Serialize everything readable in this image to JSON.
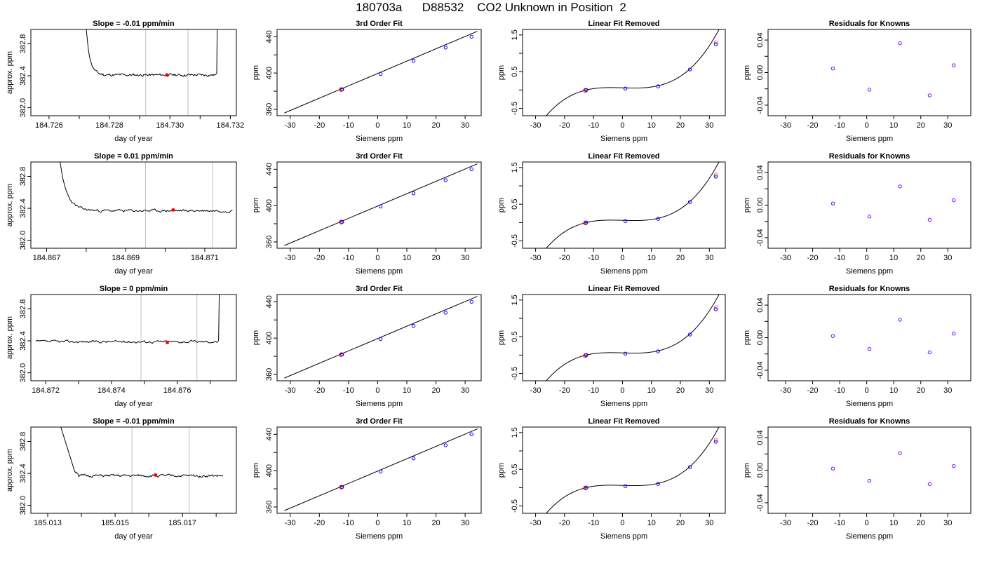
{
  "figure_title": "180703a      D88532    CO2 Unknown in Position  2",
  "chart_data": [
    {
      "type": "line",
      "row": 0,
      "col": 0,
      "title": "Slope =  -0.01  ppm/min",
      "xlabel": "day of year",
      "ylabel": "approx. ppm",
      "xlim": [
        184.7254,
        184.7322
      ],
      "ylim": [
        381.9,
        382.98
      ],
      "xticks": [
        184.726,
        184.728,
        184.73,
        184.732
      ],
      "xticklabels": [
        "184.726",
        "184.728",
        "184.730",
        "184.732"
      ],
      "xminor": [
        184.727,
        184.729,
        184.731
      ],
      "yticks": [
        382.0,
        382.4,
        382.8
      ],
      "yticklabels": [
        "382.0",
        "382.4",
        "382.8"
      ],
      "vlines": [
        184.7292,
        184.7306
      ],
      "trace": {
        "start": 184.7273,
        "end": 184.7317,
        "base": 382.41,
        "jitter": 0.012,
        "seed": 11,
        "head": {
          "x0": 184.7272,
          "y0": 383.1,
          "x1": 184.7278,
          "tau": 0.00013,
          "dip": 0.0
        },
        "tail": {
          "x0": 184.73155,
          "y": 383.1
        }
      },
      "marker": {
        "x": 184.7299,
        "y": 382.41
      }
    },
    {
      "type": "line",
      "row": 1,
      "col": 0,
      "title": "Slope =  0.01  ppm/min",
      "xlabel": "day of year",
      "ylabel": "approx. ppm",
      "xlim": [
        184.8666,
        184.8718
      ],
      "ylim": [
        381.9,
        382.98
      ],
      "xticks": [
        184.867,
        184.869,
        184.871
      ],
      "xticklabels": [
        "184.867",
        "184.869",
        "184.871"
      ],
      "xminor": [
        184.868,
        184.87
      ],
      "yticks": [
        382.0,
        382.4,
        382.8
      ],
      "yticklabels": [
        "382.0",
        "382.4",
        "382.8"
      ],
      "vlines": [
        184.8695,
        184.8712
      ],
      "trace": {
        "start": 184.8674,
        "end": 184.8717,
        "base": 382.37,
        "jitter": 0.012,
        "seed": 23,
        "head": {
          "x0": 184.8673,
          "y0": 383.1,
          "x1": 184.8683,
          "tau": 0.00018,
          "dip": 0.0
        }
      },
      "marker": {
        "x": 184.8702,
        "y": 382.38
      }
    },
    {
      "type": "line",
      "row": 2,
      "col": 0,
      "title": "Slope =  0  ppm/min",
      "xlabel": "day of year",
      "ylabel": "approx. ppm",
      "xlim": [
        184.87155,
        184.8778
      ],
      "ylim": [
        381.9,
        382.98
      ],
      "xticks": [
        184.872,
        184.874,
        184.876
      ],
      "xticklabels": [
        "184.872",
        "184.874",
        "184.876"
      ],
      "xminor": [
        184.873,
        184.875,
        184.877
      ],
      "yticks": [
        382.0,
        382.4,
        382.8
      ],
      "yticklabels": [
        "382.0",
        "382.4",
        "382.8"
      ],
      "vlines": [
        184.8749,
        184.8766
      ],
      "trace": {
        "start": 184.8717,
        "end": 184.8773,
        "base": 382.39,
        "jitter": 0.012,
        "seed": 37,
        "tail": {
          "x0": 184.87726,
          "y": 383.1
        }
      },
      "marker": {
        "x": 184.8757,
        "y": 382.38
      }
    },
    {
      "type": "line",
      "row": 3,
      "col": 0,
      "title": "Slope =  -0.01  ppm/min",
      "xlabel": "day of year",
      "ylabel": "approx. ppm",
      "xlim": [
        185.0125,
        185.0186
      ],
      "ylim": [
        381.9,
        382.98
      ],
      "xticks": [
        185.013,
        185.015,
        185.017
      ],
      "xticklabels": [
        "185.013",
        "185.015",
        "185.017"
      ],
      "xminor": [
        185.014,
        185.016,
        185.018
      ],
      "yticks": [
        382.0,
        382.4,
        382.8
      ],
      "yticklabels": [
        "382.0",
        "382.4",
        "382.8"
      ],
      "vlines": [
        185.0155,
        185.0172
      ],
      "trace": {
        "start": 185.0138,
        "end": 185.0182,
        "base": 382.37,
        "jitter": 0.012,
        "seed": 51,
        "head": {
          "x0": 185.0133,
          "y0": 383.1,
          "x1": 185.0139,
          "tau": 0.0002,
          "dip": 0.0
        }
      },
      "marker": {
        "x": 185.0162,
        "y": 382.38
      }
    },
    {
      "type": "scatter",
      "row": 0,
      "col": 1,
      "title": "3rd Order Fit",
      "xlabel": "Siemens ppm",
      "ylabel": "ppm",
      "xlim": [
        -34.5,
        35.5
      ],
      "ylim": [
        353,
        448
      ],
      "xticks": [
        -30,
        -20,
        -10,
        0,
        10,
        20,
        30
      ],
      "xticklabels": [
        "-30",
        "-20",
        "-10",
        "0",
        "10",
        "20",
        "30"
      ],
      "yticks": [
        360,
        400,
        440
      ],
      "yticklabels": [
        "360",
        "400",
        "440"
      ],
      "yminor": [
        380,
        420
      ],
      "fit_line": {
        "x": [
          -32,
          34.2
        ],
        "y": [
          356,
          446
        ]
      },
      "points_blue": [
        {
          "x": -12.2,
          "y": 382
        },
        {
          "x": 1,
          "y": 399
        },
        {
          "x": 12.3,
          "y": 413.5
        },
        {
          "x": 23.3,
          "y": 428
        },
        {
          "x": 32.2,
          "y": 440
        }
      ],
      "points_red": [
        {
          "x": -12.5,
          "y": 381.8
        }
      ]
    },
    {
      "type": "scatter",
      "row": 1,
      "col": 1,
      "title": "3rd Order Fit",
      "xlabel": "Siemens ppm",
      "ylabel": "ppm",
      "xlim": [
        -34.5,
        35.5
      ],
      "ylim": [
        353,
        448
      ],
      "xticks": [
        -30,
        -20,
        -10,
        0,
        10,
        20,
        30
      ],
      "xticklabels": [
        "-30",
        "-20",
        "-10",
        "0",
        "10",
        "20",
        "30"
      ],
      "yticks": [
        360,
        400,
        440
      ],
      "yticklabels": [
        "360",
        "400",
        "440"
      ],
      "yminor": [
        380,
        420
      ],
      "fit_line": {
        "x": [
          -32,
          34.2
        ],
        "y": [
          356,
          446
        ]
      },
      "points_blue": [
        {
          "x": -12.2,
          "y": 382
        },
        {
          "x": 1,
          "y": 399
        },
        {
          "x": 12.3,
          "y": 413.5
        },
        {
          "x": 23.3,
          "y": 428
        },
        {
          "x": 32.2,
          "y": 440
        }
      ],
      "points_red": [
        {
          "x": -12.5,
          "y": 381.8
        }
      ]
    },
    {
      "type": "scatter",
      "row": 2,
      "col": 1,
      "title": "3rd Order Fit",
      "xlabel": "Siemens ppm",
      "ylabel": "ppm",
      "xlim": [
        -34.5,
        35.5
      ],
      "ylim": [
        353,
        448
      ],
      "xticks": [
        -30,
        -20,
        -10,
        0,
        10,
        20,
        30
      ],
      "xticklabels": [
        "-30",
        "-20",
        "-10",
        "0",
        "10",
        "20",
        "30"
      ],
      "yticks": [
        360,
        400,
        440
      ],
      "yticklabels": [
        "360",
        "400",
        "440"
      ],
      "yminor": [
        380,
        420
      ],
      "fit_line": {
        "x": [
          -32,
          34.2
        ],
        "y": [
          356,
          446
        ]
      },
      "points_blue": [
        {
          "x": -12.2,
          "y": 382
        },
        {
          "x": 1,
          "y": 399
        },
        {
          "x": 12.3,
          "y": 413.5
        },
        {
          "x": 23.3,
          "y": 428
        },
        {
          "x": 32.2,
          "y": 440
        }
      ],
      "points_red": [
        {
          "x": -12.5,
          "y": 381.8
        }
      ]
    },
    {
      "type": "scatter",
      "row": 3,
      "col": 1,
      "title": "3rd Order Fit",
      "xlabel": "Siemens ppm",
      "ylabel": "ppm",
      "xlim": [
        -34.5,
        35.5
      ],
      "ylim": [
        353,
        448
      ],
      "xticks": [
        -30,
        -20,
        -10,
        0,
        10,
        20,
        30
      ],
      "xticklabels": [
        "-30",
        "-20",
        "-10",
        "0",
        "10",
        "20",
        "30"
      ],
      "yticks": [
        360,
        400,
        440
      ],
      "yticklabels": [
        "360",
        "400",
        "440"
      ],
      "yminor": [
        380,
        420
      ],
      "fit_line": {
        "x": [
          -32,
          34.2
        ],
        "y": [
          356,
          446
        ]
      },
      "points_blue": [
        {
          "x": -12.2,
          "y": 382
        },
        {
          "x": 1,
          "y": 399
        },
        {
          "x": 12.3,
          "y": 413.5
        },
        {
          "x": 23.3,
          "y": 428
        },
        {
          "x": 32.2,
          "y": 440
        }
      ],
      "points_red": [
        {
          "x": -12.5,
          "y": 381.8
        }
      ]
    },
    {
      "type": "scatter",
      "row": 0,
      "col": 2,
      "title": "Linear Fit Removed",
      "xlabel": "Siemens ppm",
      "ylabel": "ppm",
      "xlim": [
        -34.5,
        35.5
      ],
      "ylim": [
        -0.7,
        1.65
      ],
      "xticks": [
        -30,
        -20,
        -10,
        0,
        10,
        20,
        30
      ],
      "xticklabels": [
        "-30",
        "-20",
        "-10",
        "0",
        "10",
        "20",
        "30"
      ],
      "yticks": [
        -0.5,
        0.5,
        1.5
      ],
      "yticklabels": [
        "-0.5",
        "0.5",
        "1.5"
      ],
      "yminor": [
        0.0,
        1.0
      ],
      "cubic": {
        "a": 4.5e-05,
        "b": 0.0,
        "c": -0.0023,
        "d": 0.06,
        "x0": -32.2,
        "x1": 34.8
      },
      "points_blue": [
        {
          "x": -12.5,
          "y": 0.0
        },
        {
          "x": 1,
          "y": 0.04
        },
        {
          "x": 12.3,
          "y": 0.1
        },
        {
          "x": 23.3,
          "y": 0.56
        },
        {
          "x": 32.2,
          "y": 1.25
        }
      ],
      "points_red": [
        {
          "x": -12.8,
          "y": -0.01
        }
      ],
      "point_red_open": {
        "x": 32.3,
        "y": 1.3
      }
    },
    {
      "type": "scatter",
      "row": 1,
      "col": 2,
      "title": "Linear Fit Removed",
      "xlabel": "Siemens ppm",
      "ylabel": "ppm",
      "xlim": [
        -34.5,
        35.5
      ],
      "ylim": [
        -0.7,
        1.65
      ],
      "xticks": [
        -30,
        -20,
        -10,
        0,
        10,
        20,
        30
      ],
      "xticklabels": [
        "-30",
        "-20",
        "-10",
        "0",
        "10",
        "20",
        "30"
      ],
      "yticks": [
        -0.5,
        0.5,
        1.5
      ],
      "yticklabels": [
        "-0.5",
        "0.5",
        "1.5"
      ],
      "yminor": [
        0.0,
        1.0
      ],
      "cubic": {
        "a": 4.5e-05,
        "b": 0.0,
        "c": -0.0023,
        "d": 0.06,
        "x0": -32.2,
        "x1": 34.8
      },
      "points_blue": [
        {
          "x": -12.5,
          "y": 0.0
        },
        {
          "x": 1,
          "y": 0.04
        },
        {
          "x": 12.3,
          "y": 0.1
        },
        {
          "x": 23.3,
          "y": 0.56
        },
        {
          "x": 32.2,
          "y": 1.25
        }
      ],
      "points_red": [
        {
          "x": -12.8,
          "y": -0.01
        }
      ],
      "point_red_open": {
        "x": 32.3,
        "y": 1.3
      }
    },
    {
      "type": "scatter",
      "row": 2,
      "col": 2,
      "title": "Linear Fit Removed",
      "xlabel": "Siemens ppm",
      "ylabel": "ppm",
      "xlim": [
        -34.5,
        35.5
      ],
      "ylim": [
        -0.7,
        1.65
      ],
      "xticks": [
        -30,
        -20,
        -10,
        0,
        10,
        20,
        30
      ],
      "xticklabels": [
        "-30",
        "-20",
        "-10",
        "0",
        "10",
        "20",
        "30"
      ],
      "yticks": [
        -0.5,
        0.5,
        1.5
      ],
      "yticklabels": [
        "-0.5",
        "0.5",
        "1.5"
      ],
      "yminor": [
        0.0,
        1.0
      ],
      "cubic": {
        "a": 4.5e-05,
        "b": 0.0,
        "c": -0.0023,
        "d": 0.06,
        "x0": -32.2,
        "x1": 34.8
      },
      "points_blue": [
        {
          "x": -12.5,
          "y": 0.0
        },
        {
          "x": 1,
          "y": 0.04
        },
        {
          "x": 12.3,
          "y": 0.1
        },
        {
          "x": 23.3,
          "y": 0.56
        },
        {
          "x": 32.2,
          "y": 1.25
        }
      ],
      "points_red": [
        {
          "x": -12.8,
          "y": -0.01
        }
      ],
      "point_red_open": {
        "x": 32.3,
        "y": 1.3
      }
    },
    {
      "type": "scatter",
      "row": 3,
      "col": 2,
      "title": "Linear Fit Removed",
      "xlabel": "Siemens ppm",
      "ylabel": "ppm",
      "xlim": [
        -34.5,
        35.5
      ],
      "ylim": [
        -0.7,
        1.65
      ],
      "xticks": [
        -30,
        -20,
        -10,
        0,
        10,
        20,
        30
      ],
      "xticklabels": [
        "-30",
        "-20",
        "-10",
        "0",
        "10",
        "20",
        "30"
      ],
      "yticks": [
        -0.5,
        0.5,
        1.5
      ],
      "yticklabels": [
        "-0.5",
        "0.5",
        "1.5"
      ],
      "yminor": [
        0.0,
        1.0
      ],
      "cubic": {
        "a": 4.5e-05,
        "b": 0.0,
        "c": -0.0023,
        "d": 0.06,
        "x0": -32.2,
        "x1": 34.8
      },
      "points_blue": [
        {
          "x": -12.5,
          "y": 0.0
        },
        {
          "x": 1,
          "y": 0.04
        },
        {
          "x": 12.3,
          "y": 0.1
        },
        {
          "x": 23.3,
          "y": 0.56
        },
        {
          "x": 32.2,
          "y": 1.25
        }
      ],
      "points_red": [
        {
          "x": -12.8,
          "y": -0.01
        }
      ],
      "point_red_open": {
        "x": 32.3,
        "y": 1.3
      }
    },
    {
      "type": "scatter",
      "row": 0,
      "col": 3,
      "title": "Residuals for Knowns",
      "xlabel": "Siemens ppm",
      "ylabel": "ppm",
      "xlim": [
        -36.5,
        38.5
      ],
      "ylim": [
        -0.053,
        0.053
      ],
      "xticks": [
        -30,
        -20,
        -10,
        0,
        10,
        20,
        30
      ],
      "xticklabels": [
        "-30",
        "-20",
        "-10",
        "0",
        "10",
        "20",
        "30"
      ],
      "yticks": [
        -0.04,
        0.0,
        0.04
      ],
      "yticklabels": [
        "-0.04",
        "0.00",
        "0.04"
      ],
      "yminor": [
        -0.02,
        0.02
      ],
      "points_purple": [
        {
          "x": -12.5,
          "y": 0.005
        },
        {
          "x": 1,
          "y": -0.021
        },
        {
          "x": 12.3,
          "y": 0.036
        },
        {
          "x": 23.3,
          "y": -0.028
        },
        {
          "x": 32.2,
          "y": 0.009
        }
      ]
    },
    {
      "type": "scatter",
      "row": 1,
      "col": 3,
      "title": "Residuals for Knowns",
      "xlabel": "Siemens ppm",
      "ylabel": "ppm",
      "xlim": [
        -36.5,
        38.5
      ],
      "ylim": [
        -0.053,
        0.053
      ],
      "xticks": [
        -30,
        -20,
        -10,
        0,
        10,
        20,
        30
      ],
      "xticklabels": [
        "-30",
        "-20",
        "-10",
        "0",
        "10",
        "20",
        "30"
      ],
      "yticks": [
        -0.04,
        0.0,
        0.04
      ],
      "yticklabels": [
        "-0.04",
        "0.00",
        "0.04"
      ],
      "yminor": [
        -0.02,
        0.02
      ],
      "points_purple": [
        {
          "x": -12.5,
          "y": 0.002
        },
        {
          "x": 1,
          "y": -0.014
        },
        {
          "x": 12.3,
          "y": 0.023
        },
        {
          "x": 23.3,
          "y": -0.018
        },
        {
          "x": 32.2,
          "y": 0.006
        }
      ]
    },
    {
      "type": "scatter",
      "row": 2,
      "col": 3,
      "title": "Residuals for Knowns",
      "xlabel": "Siemens ppm",
      "ylabel": "ppm",
      "xlim": [
        -36.5,
        38.5
      ],
      "ylim": [
        -0.053,
        0.053
      ],
      "xticks": [
        -30,
        -20,
        -10,
        0,
        10,
        20,
        30
      ],
      "xticklabels": [
        "-30",
        "-20",
        "-10",
        "0",
        "10",
        "20",
        "30"
      ],
      "yticks": [
        -0.04,
        0.0,
        0.04
      ],
      "yticklabels": [
        "-0.04",
        "0.00",
        "0.04"
      ],
      "yminor": [
        -0.02,
        0.02
      ],
      "points_purple": [
        {
          "x": -12.5,
          "y": 0.002
        },
        {
          "x": 1,
          "y": -0.014
        },
        {
          "x": 12.3,
          "y": 0.022
        },
        {
          "x": 23.3,
          "y": -0.018
        },
        {
          "x": 32.2,
          "y": 0.005
        }
      ]
    },
    {
      "type": "scatter",
      "row": 3,
      "col": 3,
      "title": "Residuals for Knowns",
      "xlabel": "Siemens ppm",
      "ylabel": "ppm",
      "xlim": [
        -36.5,
        38.5
      ],
      "ylim": [
        -0.053,
        0.053
      ],
      "xticks": [
        -30,
        -20,
        -10,
        0,
        10,
        20,
        30
      ],
      "xticklabels": [
        "-30",
        "-20",
        "-10",
        "0",
        "10",
        "20",
        "30"
      ],
      "yticks": [
        -0.04,
        0.0,
        0.04
      ],
      "yticklabels": [
        "-0.04",
        "0.00",
        "0.04"
      ],
      "yminor": [
        -0.02,
        0.02
      ],
      "points_purple": [
        {
          "x": -12.5,
          "y": 0.002
        },
        {
          "x": 1,
          "y": -0.013
        },
        {
          "x": 12.3,
          "y": 0.021
        },
        {
          "x": 23.3,
          "y": -0.017
        },
        {
          "x": 32.2,
          "y": 0.005
        }
      ]
    }
  ],
  "colors": {
    "trace": "#000000",
    "vline": "#bebebe",
    "marker_red": "#ff0000",
    "point_blue": "#0000ff",
    "point_purple": "#8000ff",
    "axis": "#000000"
  }
}
